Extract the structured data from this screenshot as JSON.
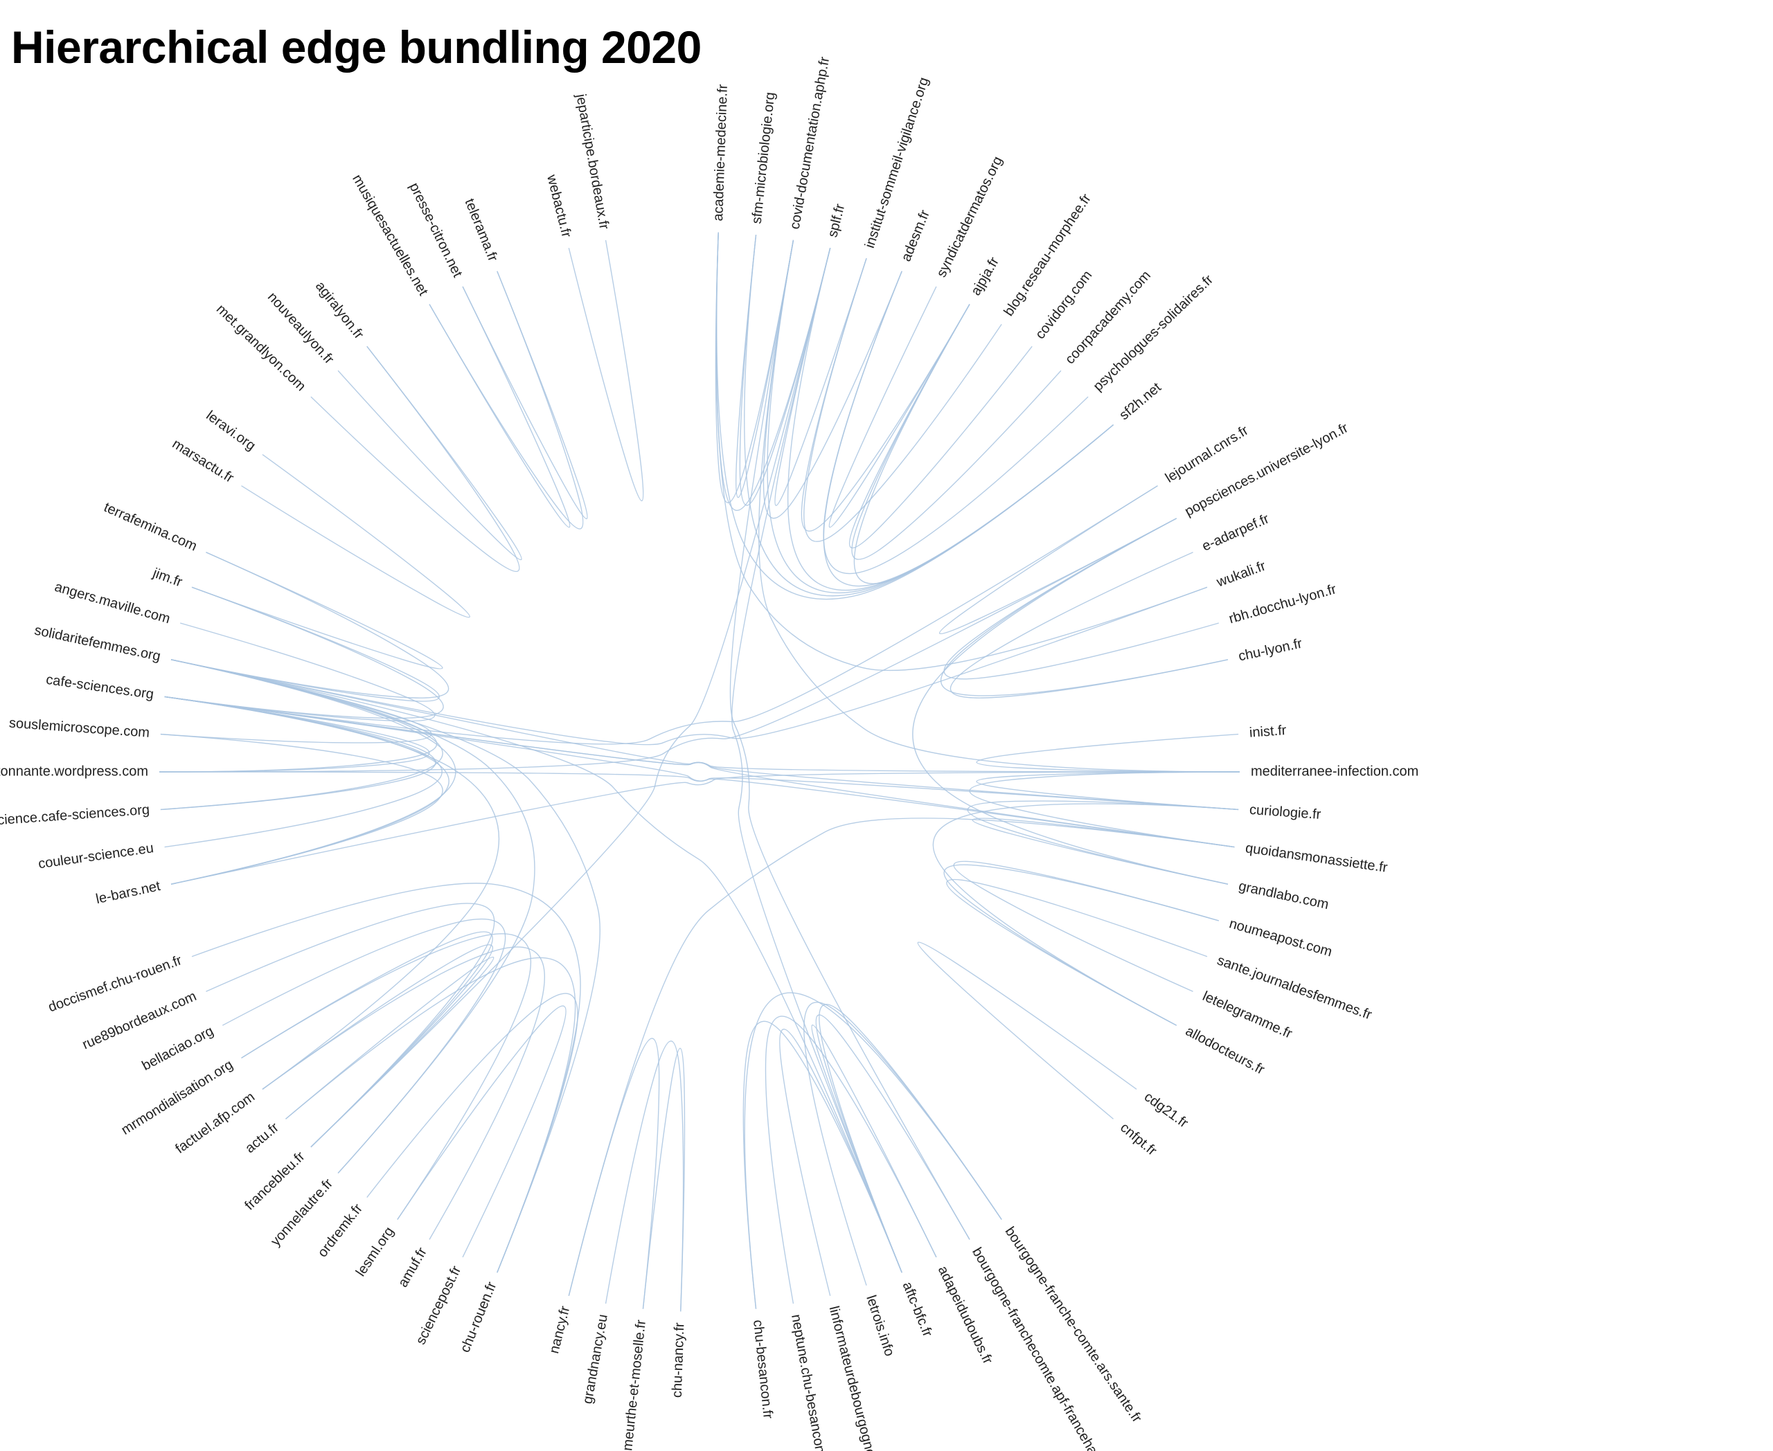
{
  "page": {
    "title": "Hierarchical edge bundling 2020"
  },
  "colors": {
    "link": "#a9c4e0",
    "label": "#222222",
    "background": "#ffffff"
  },
  "nodes": [
    {
      "id": "academie-medecine.fr",
      "angle": 2
    },
    {
      "id": "sfm-microbiologie.org",
      "angle": 6
    },
    {
      "id": "covid-documentation.aphp.fr",
      "angle": 10
    },
    {
      "id": "splf.fr",
      "angle": 14
    },
    {
      "id": "institut-sommeil-vigilance.org",
      "angle": 18
    },
    {
      "id": "adesm.fr",
      "angle": 22
    },
    {
      "id": "syndicatdermatos.org",
      "angle": 26
    },
    {
      "id": "ajpja.fr",
      "angle": 30
    },
    {
      "id": "blog.reseau-morphee.fr",
      "angle": 34
    },
    {
      "id": "covidorg.com",
      "angle": 38
    },
    {
      "id": "coorpacademy.com",
      "angle": 42
    },
    {
      "id": "psychologues-solidaires.fr",
      "angle": 46
    },
    {
      "id": "sf2h.net",
      "angle": 50
    },
    {
      "id": "lejournal.cnrs.fr",
      "angle": 58
    },
    {
      "id": "popsciences.universite-lyon.fr",
      "angle": 62
    },
    {
      "id": "e-adarpef.fr",
      "angle": 66
    },
    {
      "id": "wukali.fr",
      "angle": 70
    },
    {
      "id": "rbh.docchu-lyon.fr",
      "angle": 74
    },
    {
      "id": "chu-lyon.fr",
      "angle": 78
    },
    {
      "id": "inist.fr",
      "angle": 86
    },
    {
      "id": "mediterranee-infection.com",
      "angle": 90
    },
    {
      "id": "curiologie.fr",
      "angle": 94
    },
    {
      "id": "quoidansmonassiette.fr",
      "angle": 98
    },
    {
      "id": "grandlabo.com",
      "angle": 102
    },
    {
      "id": "noumeapost.com",
      "angle": 106
    },
    {
      "id": "sante.journaldesfemmes.fr",
      "angle": 110
    },
    {
      "id": "letelegramme.fr",
      "angle": 114
    },
    {
      "id": "allodocteurs.fr",
      "angle": 118
    },
    {
      "id": "cdg21.fr",
      "angle": 126
    },
    {
      "id": "cnfpt.fr",
      "angle": 130
    },
    {
      "id": "bourgogne-franche-comte.ars.sante.fr",
      "angle": 146
    },
    {
      "id": "bourgogne-franchecomte.apf-francehandicap.org",
      "angle": 150
    },
    {
      "id": "adapeidudoubs.fr",
      "angle": 154
    },
    {
      "id": "aftc-bfc.fr",
      "angle": 158
    },
    {
      "id": "letrois.info",
      "angle": 162
    },
    {
      "id": "linformateurdebourgogne.com",
      "angle": 166
    },
    {
      "id": "neptune.chu-besancon.fr",
      "angle": 170
    },
    {
      "id": "chu-besancon.fr",
      "angle": 174
    },
    {
      "id": "chu-nancy.fr",
      "angle": 182
    },
    {
      "id": "meurthe-et-moselle.fr",
      "angle": 186
    },
    {
      "id": "grandnancy.eu",
      "angle": 190
    },
    {
      "id": "nancy.fr",
      "angle": 194
    },
    {
      "id": "chu-rouen.fr",
      "angle": 202
    },
    {
      "id": "sciencepost.fr",
      "angle": 206
    },
    {
      "id": "amuf.fr",
      "angle": 210
    },
    {
      "id": "lesml.org",
      "angle": 214
    },
    {
      "id": "ordremk.fr",
      "angle": 218
    },
    {
      "id": "yonnelautre.fr",
      "angle": 222
    },
    {
      "id": "francebleu.fr",
      "angle": 226
    },
    {
      "id": "actu.fr",
      "angle": 230
    },
    {
      "id": "factuel.afp.com",
      "angle": 234
    },
    {
      "id": "mrmondialisation.org",
      "angle": 238
    },
    {
      "id": "bellaciao.org",
      "angle": 242
    },
    {
      "id": "rue89bordeaux.com",
      "angle": 246
    },
    {
      "id": "doccismef.chu-rouen.fr",
      "angle": 250
    },
    {
      "id": "le-bars.net",
      "angle": 258
    },
    {
      "id": "couleur-science.eu",
      "angle": 262
    },
    {
      "id": "science.cafe-sciences.org",
      "angle": 266
    },
    {
      "id": "scienceetonnante.wordpress.com",
      "angle": 270
    },
    {
      "id": "souslemicroscope.com",
      "angle": 274
    },
    {
      "id": "cafe-sciences.org",
      "angle": 278
    },
    {
      "id": "solidaritefemmes.org",
      "angle": 282
    },
    {
      "id": "angers.maville.com",
      "angle": 286
    },
    {
      "id": "jim.fr",
      "angle": 290
    },
    {
      "id": "terrafemina.com",
      "angle": 294
    },
    {
      "id": "marsactu.fr",
      "angle": 302
    },
    {
      "id": "leravi.org",
      "angle": 306
    },
    {
      "id": "met.grandlyon.com",
      "angle": 314
    },
    {
      "id": "nouveaulyon.fr",
      "angle": 318
    },
    {
      "id": "agiralyon.fr",
      "angle": 322
    },
    {
      "id": "musiquesactuelles.net",
      "angle": 330
    },
    {
      "id": "presse-citron.net",
      "angle": 334
    },
    {
      "id": "telerama.fr",
      "angle": 338
    },
    {
      "id": "webactu.fr",
      "angle": 346
    },
    {
      "id": "jeparticipe.bordeaux.fr",
      "angle": 350
    }
  ],
  "links": [
    [
      "academie-medecine.fr",
      "sf2h.net"
    ],
    [
      "academie-medecine.fr",
      "splf.fr"
    ],
    [
      "academie-medecine.fr",
      "covid-documentation.aphp.fr"
    ],
    [
      "sfm-microbiologie.org",
      "sf2h.net"
    ],
    [
      "sfm-microbiologie.org",
      "covid-documentation.aphp.fr"
    ],
    [
      "sfm-microbiologie.org",
      "splf.fr"
    ],
    [
      "covid-documentation.aphp.fr",
      "sf2h.net"
    ],
    [
      "covid-documentation.aphp.fr",
      "adesm.fr"
    ],
    [
      "covid-documentation.aphp.fr",
      "mediterranee-infection.com"
    ],
    [
      "splf.fr",
      "institut-sommeil-vigilance.org"
    ],
    [
      "splf.fr",
      "sf2h.net"
    ],
    [
      "splf.fr",
      "francebleu.fr"
    ],
    [
      "splf.fr",
      "aftc-bfc.fr"
    ],
    [
      "institut-sommeil-vigilance.org",
      "blog.reseau-morphee.fr"
    ],
    [
      "institut-sommeil-vigilance.org",
      "ajpja.fr"
    ],
    [
      "adesm.fr",
      "sf2h.net"
    ],
    [
      "adesm.fr",
      "psychologues-solidaires.fr"
    ],
    [
      "syndicatdermatos.org",
      "ajpja.fr"
    ],
    [
      "ajpja.fr",
      "covidorg.com"
    ],
    [
      "ajpja.fr",
      "coorpacademy.com"
    ],
    [
      "ajpja.fr",
      "sf2h.net"
    ],
    [
      "lejournal.cnrs.fr",
      "popsciences.universite-lyon.fr"
    ],
    [
      "lejournal.cnrs.fr",
      "cafe-sciences.org"
    ],
    [
      "popsciences.universite-lyon.fr",
      "chu-lyon.fr"
    ],
    [
      "popsciences.universite-lyon.fr",
      "rbh.docchu-lyon.fr"
    ],
    [
      "e-adarpef.fr",
      "chu-lyon.fr"
    ],
    [
      "wukali.fr",
      "solidaritefemmes.org"
    ],
    [
      "wukali.fr",
      "academie-medecine.fr"
    ],
    [
      "mediterranee-infection.com",
      "curiologie.fr"
    ],
    [
      "mediterranee-infection.com",
      "inist.fr"
    ],
    [
      "mediterranee-infection.com",
      "le-bars.net"
    ],
    [
      "mediterranee-infection.com",
      "cafe-sciences.org"
    ],
    [
      "mediterranee-infection.com",
      "quoidansmonassiette.fr"
    ],
    [
      "curiologie.fr",
      "cafe-sciences.org"
    ],
    [
      "curiologie.fr",
      "scienceetonnante.wordpress.com"
    ],
    [
      "curiologie.fr",
      "grandlabo.com"
    ],
    [
      "quoidansmonassiette.fr",
      "solidaritefemmes.org"
    ],
    [
      "quoidansmonassiette.fr",
      "nancy.fr"
    ],
    [
      "quoidansmonassiette.fr",
      "grandlabo.com"
    ],
    [
      "grandlabo.com",
      "popsciences.universite-lyon.fr"
    ],
    [
      "noumeapost.com",
      "allodocteurs.fr"
    ],
    [
      "sante.journaldesfemmes.fr",
      "allodocteurs.fr"
    ],
    [
      "letelegramme.fr",
      "noumeapost.com"
    ],
    [
      "allodocteurs.fr",
      "curiologie.fr"
    ],
    [
      "cdg21.fr",
      "cnfpt.fr"
    ],
    [
      "bourgogne-franche-comte.ars.sante.fr",
      "aftc-bfc.fr"
    ],
    [
      "bourgogne-franche-comte.ars.sante.fr",
      "chu-besancon.fr"
    ],
    [
      "bourgogne-franche-comte.ars.sante.fr",
      "letrois.info"
    ],
    [
      "bourgogne-franchecomte.apf-francehandicap.org",
      "aftc-bfc.fr"
    ],
    [
      "bourgogne-franchecomte.apf-francehandicap.org",
      "covid-documentation.aphp.fr"
    ],
    [
      "adapeidudoubs.fr",
      "neptune.chu-besancon.fr"
    ],
    [
      "adapeidudoubs.fr",
      "aftc-bfc.fr"
    ],
    [
      "aftc-bfc.fr",
      "linformateurdebourgogne.com"
    ],
    [
      "aftc-bfc.fr",
      "chu-besancon.fr"
    ],
    [
      "aftc-bfc.fr",
      "solidaritefemmes.org"
    ],
    [
      "chu-nancy.fr",
      "grandnancy.eu"
    ],
    [
      "chu-nancy.fr",
      "meurthe-et-moselle.fr"
    ],
    [
      "meurthe-et-moselle.fr",
      "nancy.fr"
    ],
    [
      "chu-rouen.fr",
      "doccismef.chu-rouen.fr"
    ],
    [
      "chu-rouen.fr",
      "ordremk.fr"
    ],
    [
      "chu-rouen.fr",
      "actu.fr"
    ],
    [
      "sciencepost.fr",
      "lesml.org"
    ],
    [
      "amuf.fr",
      "factuel.afp.com"
    ],
    [
      "lesml.org",
      "mrmondialisation.org"
    ],
    [
      "yonnelautre.fr",
      "bellaciao.org"
    ],
    [
      "yonnelautre.fr",
      "solidaritefemmes.org"
    ],
    [
      "francebleu.fr",
      "rue89bordeaux.com"
    ],
    [
      "francebleu.fr",
      "mrmondialisation.org"
    ],
    [
      "francebleu.fr",
      "factuel.afp.com"
    ],
    [
      "francebleu.fr",
      "actu.fr"
    ],
    [
      "factuel.afp.com",
      "cafe-sciences.org"
    ],
    [
      "le-bars.net",
      "cafe-sciences.org"
    ],
    [
      "le-bars.net",
      "souslemicroscope.com"
    ],
    [
      "le-bars.net",
      "solidaritefemmes.org"
    ],
    [
      "couleur-science.eu",
      "cafe-sciences.org"
    ],
    [
      "science.cafe-sciences.org",
      "cafe-sciences.org"
    ],
    [
      "science.cafe-sciences.org",
      "solidaritefemmes.org"
    ],
    [
      "scienceetonnante.wordpress.com",
      "cafe-sciences.org"
    ],
    [
      "scienceetonnante.wordpress.com",
      "solidaritefemmes.org"
    ],
    [
      "scienceetonnante.wordpress.com",
      "popsciences.universite-lyon.fr"
    ],
    [
      "souslemicroscope.com",
      "solidaritefemmes.org"
    ],
    [
      "cafe-sciences.org",
      "jim.fr"
    ],
    [
      "cafe-sciences.org",
      "angers.maville.com"
    ],
    [
      "cafe-sciences.org",
      "quoidansmonassiette.fr"
    ],
    [
      "solidaritefemmes.org",
      "terrafemina.com"
    ],
    [
      "solidaritefemmes.org",
      "jim.fr"
    ],
    [
      "solidaritefemmes.org",
      "chu-rouen.fr"
    ],
    [
      "jim.fr",
      "terrafemina.com"
    ],
    [
      "marsactu.fr",
      "leravi.org"
    ],
    [
      "met.grandlyon.com",
      "agiralyon.fr"
    ],
    [
      "nouveaulyon.fr",
      "agiralyon.fr"
    ],
    [
      "musiquesactuelles.net",
      "telerama.fr"
    ],
    [
      "presse-citron.net",
      "telerama.fr"
    ],
    [
      "musiquesactuelles.net",
      "presse-citron.net"
    ],
    [
      "webactu.fr",
      "jeparticipe.bordeaux.fr"
    ]
  ]
}
